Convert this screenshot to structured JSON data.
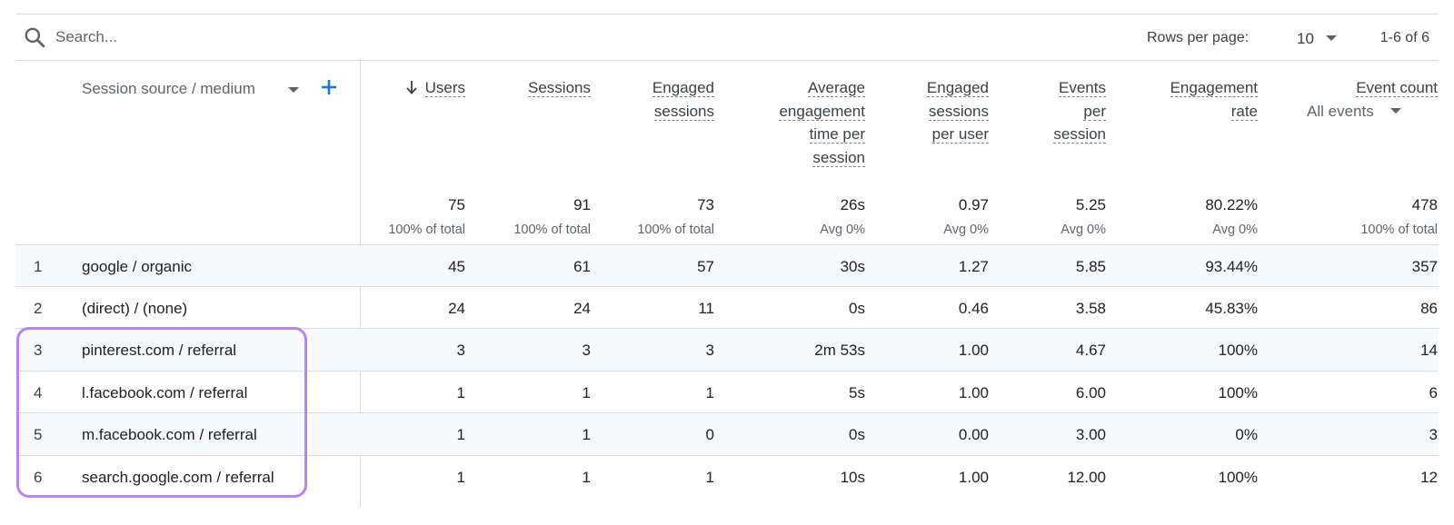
{
  "search": {
    "placeholder": "Search..."
  },
  "pagination": {
    "rows_per_page_label": "Rows per page:",
    "rows_per_page_value": "10",
    "range": "1-6 of 6"
  },
  "dimension": {
    "label": "Session source / medium"
  },
  "columns": [
    {
      "label_lines": [
        "Users"
      ]
    },
    {
      "label_lines": [
        "Sessions"
      ]
    },
    {
      "label_lines": [
        "Engaged",
        "sessions"
      ]
    },
    {
      "label_lines": [
        "Average",
        "engagement",
        "time per",
        "session"
      ]
    },
    {
      "label_lines": [
        "Engaged",
        "sessions",
        "per user"
      ]
    },
    {
      "label_lines": [
        "Events",
        "per",
        "session"
      ]
    },
    {
      "label_lines": [
        "Engagement",
        "rate"
      ]
    },
    {
      "label_lines": [
        "Event count"
      ],
      "sub_selector": "All events"
    }
  ],
  "totals": [
    {
      "value": "75",
      "sub": "100% of total"
    },
    {
      "value": "91",
      "sub": "100% of total"
    },
    {
      "value": "73",
      "sub": "100% of total"
    },
    {
      "value": "26s",
      "sub": "Avg 0%"
    },
    {
      "value": "0.97",
      "sub": "Avg 0%"
    },
    {
      "value": "5.25",
      "sub": "Avg 0%"
    },
    {
      "value": "80.22%",
      "sub": "Avg 0%"
    },
    {
      "value": "478",
      "sub": "100% of total"
    }
  ],
  "rows": [
    {
      "rank": "1",
      "dimension": "google / organic",
      "values": [
        "45",
        "61",
        "57",
        "30s",
        "1.27",
        "5.85",
        "93.44%",
        "357"
      ]
    },
    {
      "rank": "2",
      "dimension": "(direct) / (none)",
      "values": [
        "24",
        "24",
        "11",
        "0s",
        "0.46",
        "3.58",
        "45.83%",
        "86"
      ]
    },
    {
      "rank": "3",
      "dimension": "pinterest.com / referral",
      "values": [
        "3",
        "3",
        "3",
        "2m 53s",
        "1.00",
        "4.67",
        "100%",
        "14"
      ]
    },
    {
      "rank": "4",
      "dimension": "l.facebook.com / referral",
      "values": [
        "1",
        "1",
        "1",
        "5s",
        "1.00",
        "6.00",
        "100%",
        "6"
      ]
    },
    {
      "rank": "5",
      "dimension": "m.facebook.com / referral",
      "values": [
        "1",
        "1",
        "0",
        "0s",
        "0.00",
        "3.00",
        "0%",
        "3"
      ]
    },
    {
      "rank": "6",
      "dimension": "search.google.com / referral",
      "values": [
        "1",
        "1",
        "1",
        "10s",
        "1.00",
        "12.00",
        "100%",
        "12"
      ]
    }
  ],
  "colors": {
    "accent": "#1a73e8",
    "highlight_border": "#b585f2",
    "divider": "#dadce0",
    "row_alt": "#f8f9fa"
  },
  "icons": {
    "search": "search-icon",
    "add": "plus-icon",
    "sort": "arrow-down-icon",
    "dropdown": "caret-down-icon"
  }
}
